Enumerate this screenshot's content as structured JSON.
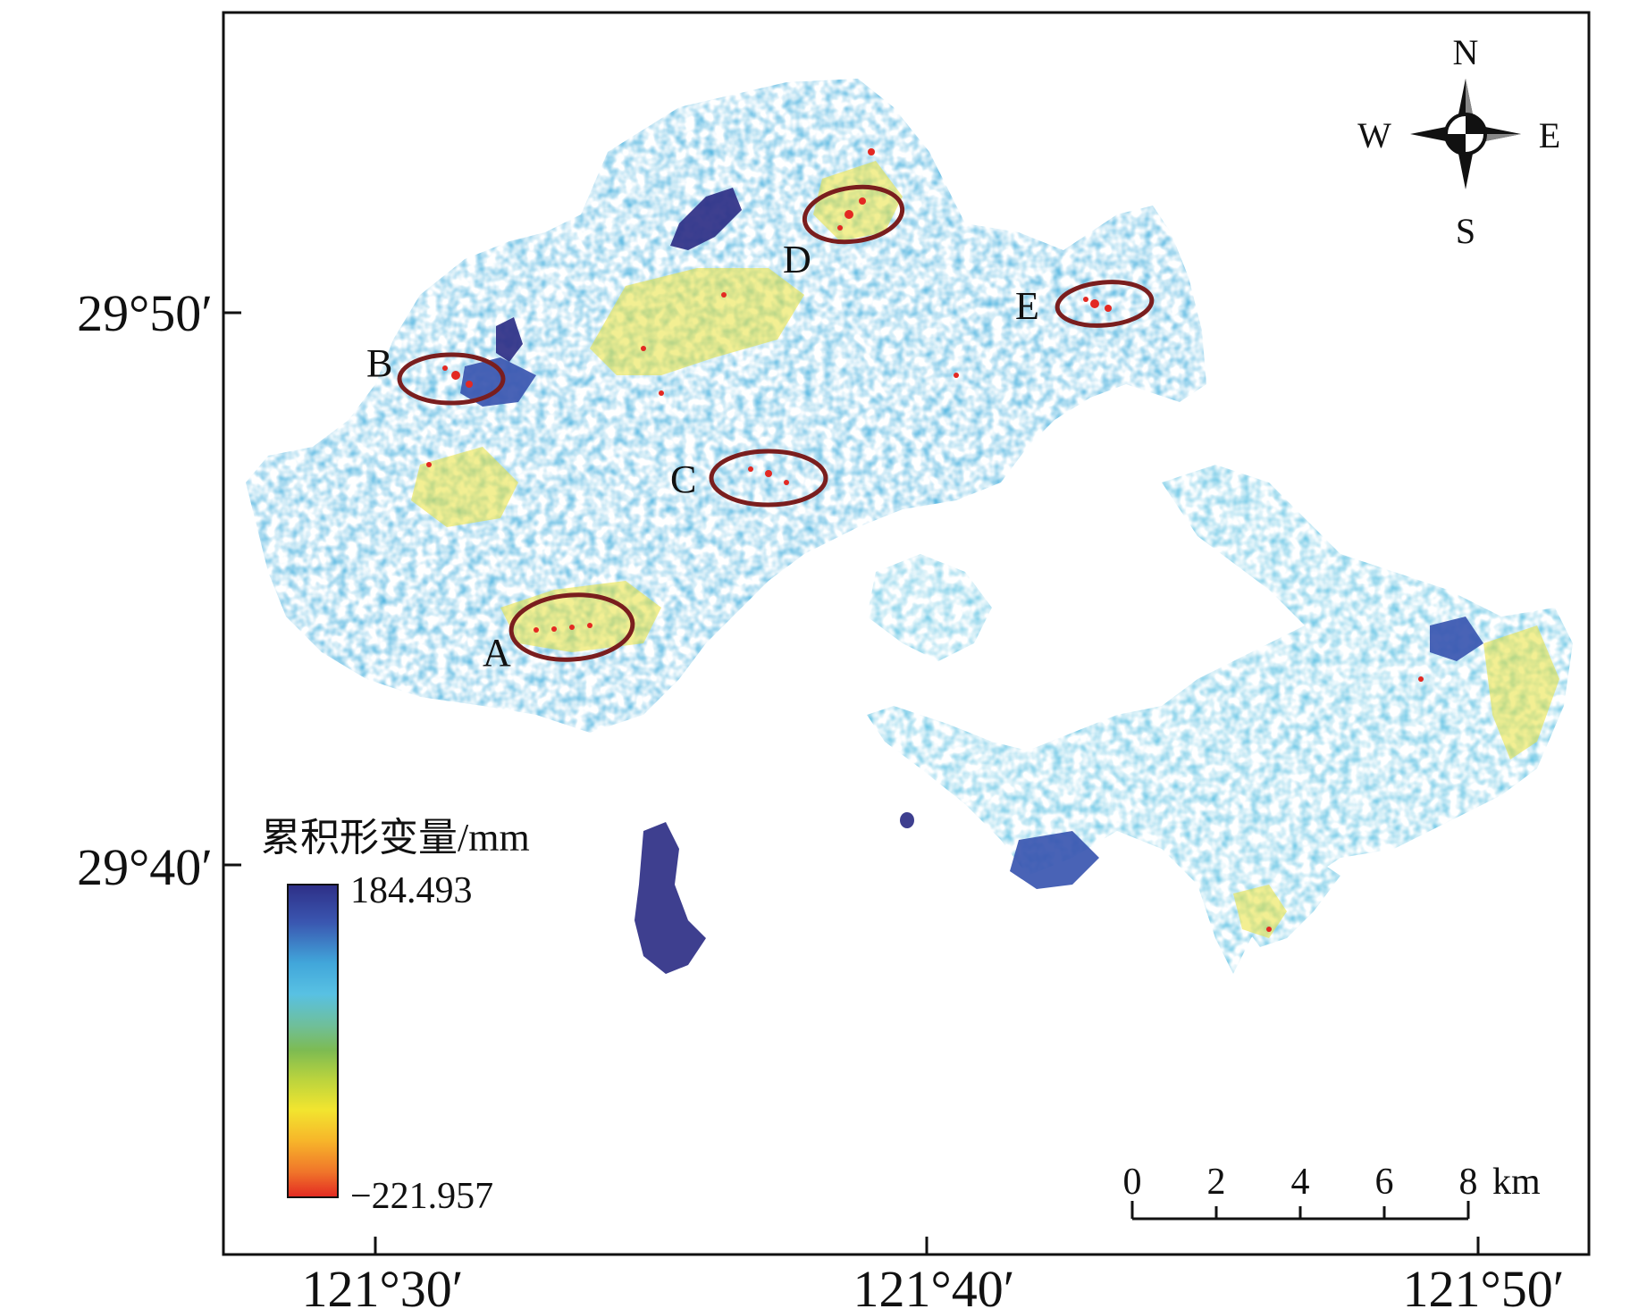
{
  "axes": {
    "x_ticks": [
      "121°30′",
      "121°40′",
      "121°50′"
    ],
    "y_ticks": [
      "29°50′",
      "29°40′"
    ]
  },
  "compass": {
    "north": "N",
    "south": "S",
    "east": "E",
    "west": "W"
  },
  "legend": {
    "title": "累积形变量/mm",
    "max_label": "184.493",
    "min_label": "−221.957",
    "colors": [
      "#2e2f86",
      "#3a56b0",
      "#41a6da",
      "#58c1e3",
      "#6fbf9a",
      "#7dbb52",
      "#b9d33e",
      "#f2e52f",
      "#f7b52a",
      "#f0742a",
      "#e32922"
    ]
  },
  "scale_bar": {
    "ticks": [
      "0",
      "2",
      "4",
      "6",
      "8"
    ],
    "unit": "km"
  },
  "regions": [
    {
      "label": "A"
    },
    {
      "label": "B"
    },
    {
      "label": "C"
    },
    {
      "label": "D"
    },
    {
      "label": "E"
    }
  ],
  "colors": {
    "ellipse": "#7a1e1e",
    "frame": "#111111",
    "deform_blue": "#41a6da",
    "deform_dark": "#2e2f86",
    "deform_yellow": "#e9e23a",
    "deform_red": "#e32922"
  }
}
